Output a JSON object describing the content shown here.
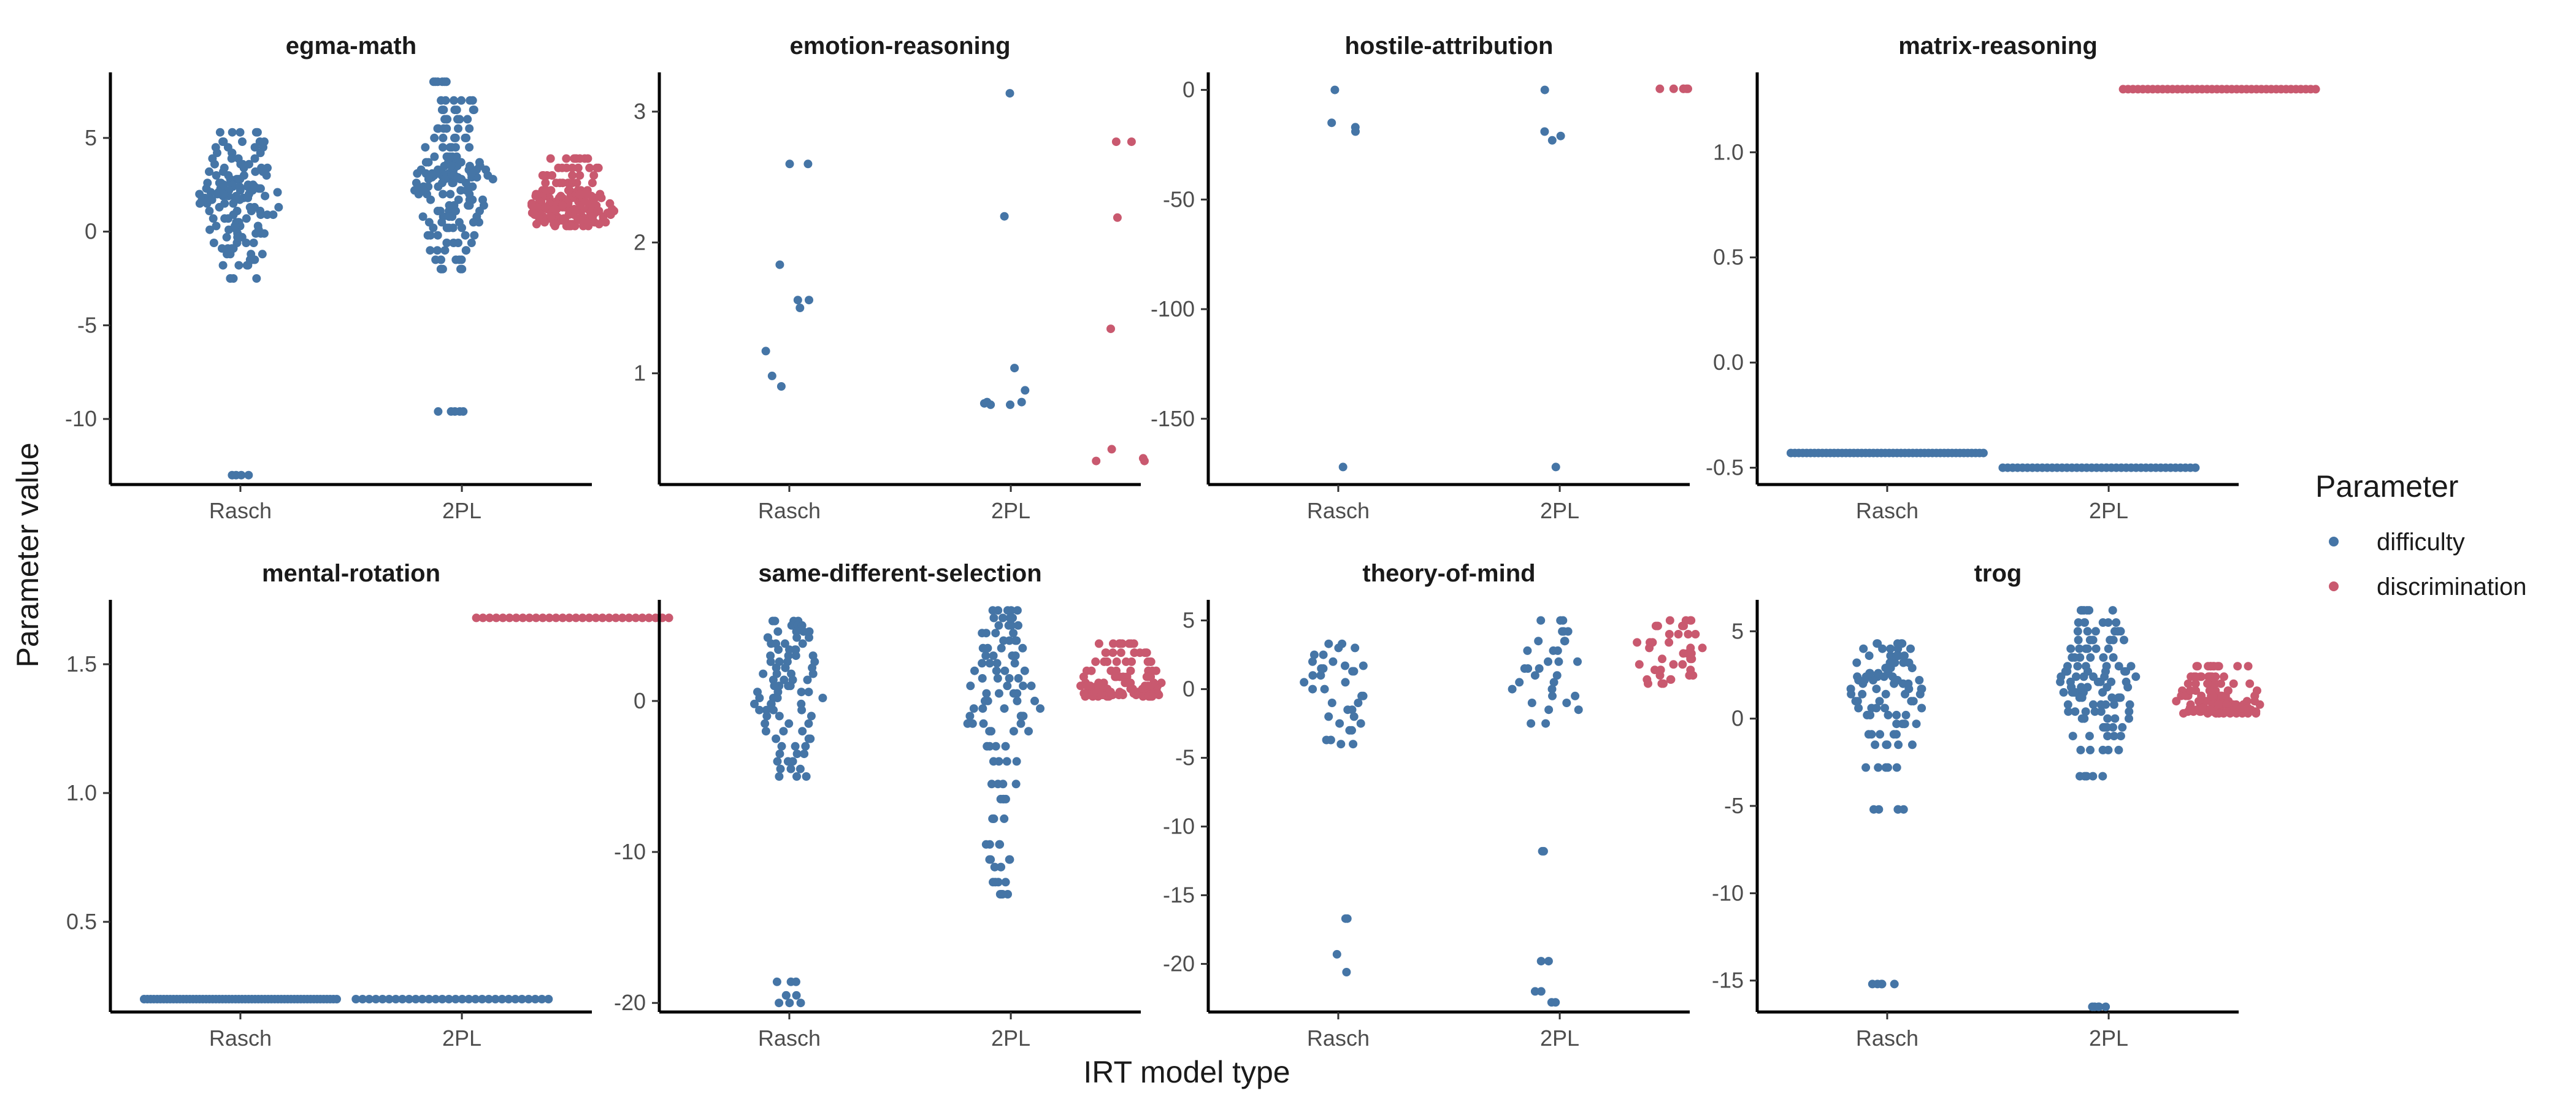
{
  "chart_data": {
    "type": "scatter",
    "subtype": "beeswarm-facets",
    "xlabel": "IRT model type",
    "ylabel": "Parameter value",
    "categories": [
      "Rasch",
      "2PL"
    ],
    "legend": {
      "title": "Parameter",
      "position": "right",
      "items": [
        {
          "name": "difficulty",
          "color": "#4575a6"
        },
        {
          "name": "discrimination",
          "color": "#c9596f"
        }
      ]
    },
    "grid": false,
    "panels": [
      {
        "title": "egma-math",
        "ylim": [
          -13.5,
          8.5
        ],
        "yticks": [
          5,
          0,
          -5,
          -10
        ],
        "ytick_labels": [
          "5",
          "0",
          "-5",
          "-10"
        ],
        "groups": [
          {
            "x": "Rasch",
            "parameter": "difficulty",
            "n": 150,
            "values": [
              5.3,
              4.8,
              4.5,
              4.2,
              3.9,
              3.6,
              3.4,
              3.2,
              3.0,
              2.8,
              2.6,
              2.5,
              2.4,
              2.3,
              2.2,
              2.1,
              2.0,
              1.9,
              1.8,
              1.7,
              1.5,
              1.3,
              1.1,
              0.9,
              0.7,
              0.5,
              0.3,
              0.1,
              -0.1,
              -0.3,
              -0.6,
              -0.9,
              -1.2,
              -1.5,
              -1.8,
              -2.5,
              -13.0
            ]
          },
          {
            "x": "2PL",
            "parameter": "difficulty",
            "n": 170,
            "values": [
              8.0,
              7.0,
              6.5,
              6.0,
              5.5,
              5.0,
              4.5,
              4.0,
              3.7,
              3.5,
              3.3,
              3.1,
              3.0,
              2.9,
              2.8,
              2.6,
              2.4,
              2.2,
              2.0,
              1.7,
              1.4,
              1.1,
              0.8,
              0.5,
              0.2,
              -0.2,
              -0.6,
              -1.0,
              -1.5,
              -2.0,
              -9.6
            ]
          },
          {
            "x": "2PL",
            "parameter": "discrimination",
            "n": 160,
            "values": [
              3.9,
              3.4,
              3.0,
              2.6,
              2.2,
              2.0,
              1.9,
              1.8,
              1.6,
              1.5,
              1.4,
              1.3,
              1.2,
              1.1,
              1.0,
              0.9,
              0.8,
              0.7,
              0.6,
              0.5,
              0.4,
              0.3
            ]
          }
        ]
      },
      {
        "title": "emotion-reasoning",
        "ylim": [
          0.15,
          3.3
        ],
        "yticks": [
          3,
          2,
          1
        ],
        "ytick_labels": [
          "3",
          "2",
          "1"
        ],
        "groups": [
          {
            "x": "Rasch",
            "parameter": "difficulty",
            "n": 9,
            "values": [
              2.6,
              1.83,
              1.56,
              1.56,
              1.5,
              1.17,
              0.98,
              0.9
            ]
          },
          {
            "x": "2PL",
            "parameter": "difficulty",
            "n": 9,
            "values": [
              3.14,
              2.2,
              1.04,
              0.87,
              0.78,
              0.78,
              0.77,
              0.76,
              0.76
            ]
          },
          {
            "x": "2PL",
            "parameter": "discrimination",
            "n": 8,
            "values": [
              2.77,
              2.77,
              2.19,
              1.34,
              0.42,
              0.35,
              0.33,
              0.33
            ]
          }
        ]
      },
      {
        "title": "hostile-attribution",
        "ylim": [
          -180,
          8
        ],
        "yticks": [
          0,
          -50,
          -100,
          -150
        ],
        "ytick_labels": [
          "0",
          "-50",
          "-100",
          "-150"
        ],
        "groups": [
          {
            "x": "Rasch",
            "parameter": "difficulty",
            "n": 5,
            "values": [
              0,
              -15,
              -17,
              -19,
              -172
            ]
          },
          {
            "x": "2PL",
            "parameter": "difficulty",
            "n": 5,
            "values": [
              0,
              -19,
              -21,
              -23,
              -172
            ]
          },
          {
            "x": "2PL",
            "parameter": "discrimination",
            "n": 6,
            "values": [
              0.5,
              0.5,
              0.5,
              0.5,
              0.5,
              0.5
            ]
          }
        ]
      },
      {
        "title": "matrix-reasoning",
        "ylim": [
          -0.58,
          1.38
        ],
        "yticks": [
          1.0,
          0.5,
          0.0,
          -0.5
        ],
        "ytick_labels": [
          "1.0",
          "0.5",
          "0.0",
          "-0.5"
        ],
        "groups": [
          {
            "x": "Rasch",
            "parameter": "difficulty",
            "n": 50,
            "values": [
              -0.43
            ]
          },
          {
            "x": "2PL",
            "parameter": "difficulty",
            "n": 40,
            "values": [
              -0.5
            ]
          },
          {
            "x": "2PL",
            "parameter": "discrimination",
            "n": 40,
            "values": [
              1.3
            ]
          }
        ]
      },
      {
        "title": "mental-rotation",
        "ylim": [
          0.15,
          1.75
        ],
        "yticks": [
          1.5,
          1.0,
          0.5
        ],
        "ytick_labels": [
          "1.5",
          "1.0",
          "0.5"
        ],
        "groups": [
          {
            "x": "Rasch",
            "parameter": "difficulty",
            "n": 60,
            "values": [
              0.2
            ]
          },
          {
            "x": "2PL",
            "parameter": "difficulty",
            "n": 30,
            "values": [
              0.2
            ]
          },
          {
            "x": "2PL",
            "parameter": "discrimination",
            "n": 30,
            "values": [
              1.68
            ]
          }
        ]
      },
      {
        "title": "same-different-selection",
        "ylim": [
          -20.6,
          6.7
        ],
        "yticks": [
          0,
          -10,
          -20
        ],
        "ytick_labels": [
          "0",
          "-10",
          "-20"
        ],
        "groups": [
          {
            "x": "Rasch",
            "parameter": "difficulty",
            "n": 100,
            "values": [
              5.3,
              5.0,
              4.6,
              4.2,
              3.8,
              3.4,
              3.0,
              2.6,
              2.2,
              1.8,
              1.4,
              1.0,
              0.6,
              0.2,
              -0.2,
              -0.6,
              -1.0,
              -1.5,
              -2.0,
              -2.5,
              -3.0,
              -3.5,
              -4.0,
              -4.5,
              -5.0,
              -18.6,
              -19.5,
              -20.0
            ]
          },
          {
            "x": "2PL",
            "parameter": "difficulty",
            "n": 110,
            "values": [
              6.0,
              5.5,
              5.0,
              4.5,
              4.0,
              3.5,
              3.0,
              2.5,
              2.0,
              1.5,
              1.0,
              0.5,
              0.0,
              -0.5,
              -1.0,
              -1.5,
              -2.0,
              -3.0,
              -4.0,
              -5.5,
              -6.5,
              -7.8,
              -9.5,
              -10.5,
              -11.0,
              -12.0,
              -12.8
            ]
          },
          {
            "x": "2PL",
            "parameter": "discrimination",
            "n": 110,
            "values": [
              3.8,
              3.2,
              2.6,
              2.0,
              1.6,
              1.2,
              1.0,
              0.8,
              0.6,
              0.5,
              0.4,
              0.3
            ]
          }
        ]
      },
      {
        "title": "theory-of-mind",
        "ylim": [
          -23.5,
          6.5
        ],
        "yticks": [
          5,
          0,
          -5,
          -10,
          -15,
          -20
        ],
        "ytick_labels": [
          "5",
          "0",
          "-5",
          "-10",
          "-15",
          "-20"
        ],
        "groups": [
          {
            "x": "Rasch",
            "parameter": "difficulty",
            "n": 40,
            "values": [
              3.3,
              3.0,
              2.5,
              2.0,
              1.7,
              1.5,
              1.3,
              1.0,
              0.5,
              0.0,
              -0.5,
              -1.0,
              -1.5,
              -2.0,
              -2.5,
              -3.0,
              -3.7,
              -4.0,
              -16.7,
              -19.3,
              -20.6
            ]
          },
          {
            "x": "2PL",
            "parameter": "difficulty",
            "n": 40,
            "values": [
              5.0,
              4.2,
              3.5,
              2.8,
              2.0,
              1.5,
              1.0,
              0.5,
              0.0,
              -0.5,
              -1.0,
              -1.5,
              -2.5,
              -11.8,
              -19.8,
              -22.0,
              -22.8
            ]
          },
          {
            "x": "2PL",
            "parameter": "discrimination",
            "n": 40,
            "values": [
              5.0,
              4.6,
              4.0,
              3.4,
              3.0,
              2.6,
              2.2,
              1.8,
              1.4,
              1.0,
              0.7,
              0.4
            ]
          }
        ]
      },
      {
        "title": "trog",
        "ylim": [
          -16.8,
          6.8
        ],
        "yticks": [
          5,
          0,
          -5,
          -10,
          -15
        ],
        "ytick_labels": [
          "5",
          "0",
          "-5",
          "-10",
          "-15"
        ],
        "groups": [
          {
            "x": "Rasch",
            "parameter": "difficulty",
            "n": 100,
            "values": [
              4.3,
              4.0,
              3.6,
              3.2,
              2.9,
              2.6,
              2.4,
              2.2,
              2.0,
              1.7,
              1.4,
              1.0,
              0.6,
              0.2,
              -0.3,
              -0.9,
              -1.5,
              -2.8,
              -5.2,
              -15.2
            ]
          },
          {
            "x": "2PL",
            "parameter": "difficulty",
            "n": 120,
            "values": [
              6.2,
              5.5,
              5.0,
              4.5,
              4.0,
              3.5,
              3.0,
              2.7,
              2.4,
              2.1,
              1.8,
              1.5,
              1.2,
              0.8,
              0.4,
              0.0,
              -0.5,
              -1.0,
              -1.8,
              -3.3,
              -16.5
            ]
          },
          {
            "x": "2PL",
            "parameter": "discrimination",
            "n": 120,
            "values": [
              3.0,
              2.4,
              2.0,
              1.6,
              1.3,
              1.0,
              0.8,
              0.6,
              0.5,
              0.4,
              0.3
            ]
          }
        ]
      }
    ]
  }
}
